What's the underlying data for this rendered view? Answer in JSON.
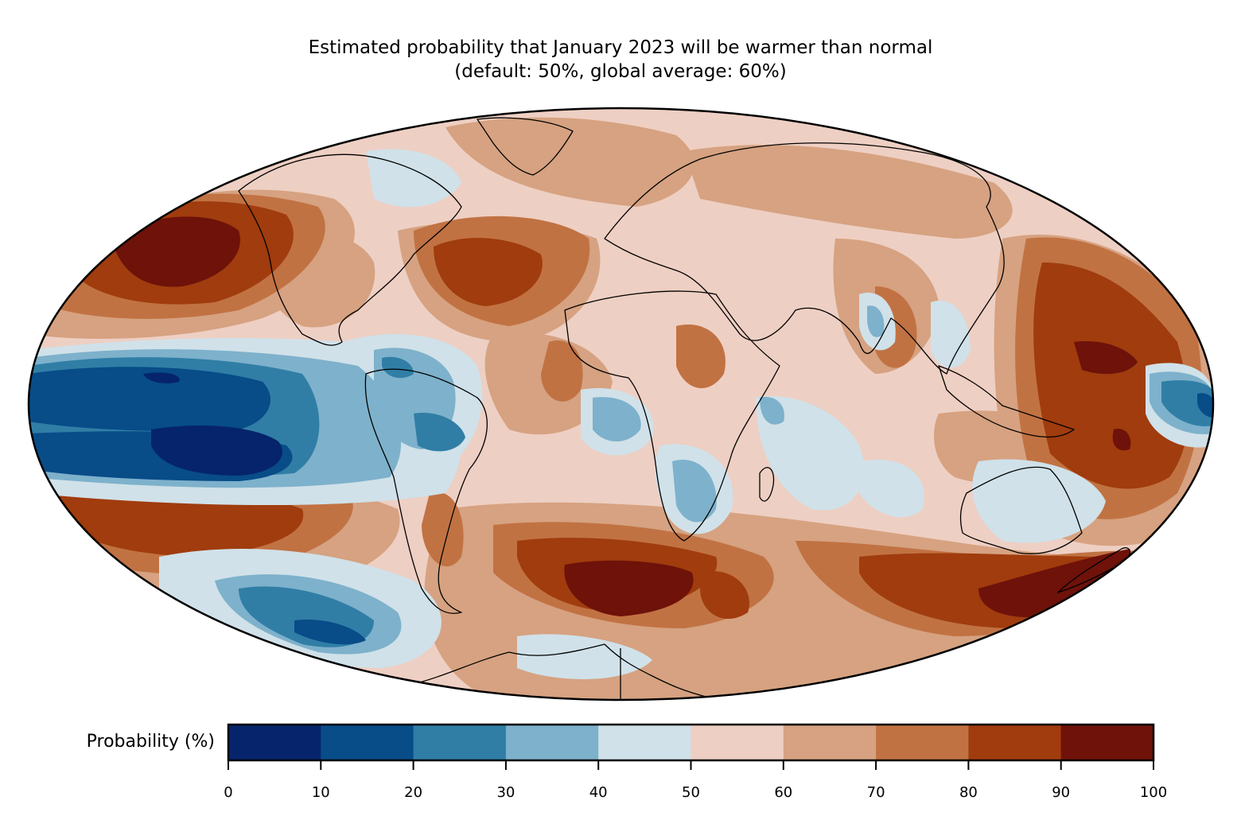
{
  "title": {
    "line1": "Estimated probability that January 2023 will be warmer than normal",
    "line2": "(default: 50%, global average: 60%)"
  },
  "map_info": {
    "projection": "Mollweide",
    "default_probability_percent": 50,
    "global_average_probability_percent": 60
  },
  "colorbar": {
    "label": "Probability (%)",
    "min": 0,
    "max": 100,
    "ticks": [
      "0",
      "10",
      "20",
      "30",
      "40",
      "50",
      "60",
      "70",
      "80",
      "90",
      "100"
    ],
    "bins": [
      {
        "range": [
          0,
          10
        ],
        "color": "#05246b"
      },
      {
        "range": [
          10,
          20
        ],
        "color": "#084c88"
      },
      {
        "range": [
          20,
          30
        ],
        "color": "#307ea6"
      },
      {
        "range": [
          30,
          40
        ],
        "color": "#7eb1cb"
      },
      {
        "range": [
          40,
          50
        ],
        "color": "#d0e1e9"
      },
      {
        "range": [
          50,
          60
        ],
        "color": "#eecfc3"
      },
      {
        "range": [
          60,
          70
        ],
        "color": "#d6a281"
      },
      {
        "range": [
          70,
          80
        ],
        "color": "#c17243"
      },
      {
        "range": [
          80,
          90
        ],
        "color": "#a03c0d"
      },
      {
        "range": [
          90,
          100
        ],
        "color": "#6e120a"
      }
    ]
  },
  "chart_data": {
    "type": "heatmap",
    "title": "Estimated probability that January 2023 will be warmer than normal (default: 50%, global average: 60%)",
    "colorbar_label": "Probability (%)",
    "value_range": [
      0,
      100
    ],
    "levels": [
      0,
      10,
      20,
      30,
      40,
      50,
      60,
      70,
      80,
      90,
      100
    ],
    "regions": [
      {
        "name": "Equatorial eastern Pacific (La Niña tongue)",
        "value_bin": [
          0,
          10
        ]
      },
      {
        "name": "North Pacific (east of Japan / Gulf of Alaska)",
        "value_bin": [
          90,
          100
        ]
      },
      {
        "name": "Western tropical Pacific / Philippine Sea",
        "value_bin": [
          90,
          100
        ]
      },
      {
        "name": "South Atlantic (southwest of Africa)",
        "value_bin": [
          90,
          100
        ]
      },
      {
        "name": "Tasman Sea / south of Australia",
        "value_bin": [
          90,
          100
        ]
      },
      {
        "name": "Southeast Pacific (west of Chile)",
        "value_bin": [
          10,
          30
        ]
      },
      {
        "name": "Southern Africa",
        "value_bin": [
          30,
          50
        ]
      },
      {
        "name": "Northern South America",
        "value_bin": [
          20,
          40
        ]
      },
      {
        "name": "Australia interior",
        "value_bin": [
          40,
          60
        ]
      },
      {
        "name": "North Atlantic subtropics",
        "value_bin": [
          80,
          90
        ]
      },
      {
        "name": "Eurasia",
        "value_bin": [
          50,
          70
        ]
      },
      {
        "name": "North America",
        "value_bin": [
          50,
          70
        ]
      }
    ]
  }
}
